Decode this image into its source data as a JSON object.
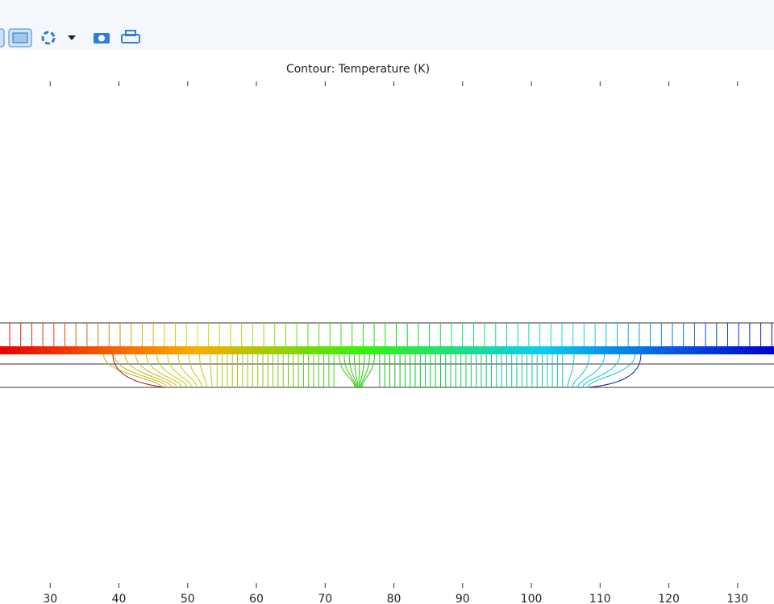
{
  "plot": {
    "title": "Contour: Temperature (K)",
    "xticks": [
      30,
      40,
      50,
      60,
      70,
      80,
      90,
      100,
      110,
      120,
      130
    ],
    "xlim": [
      22.7,
      135.3
    ]
  }
}
